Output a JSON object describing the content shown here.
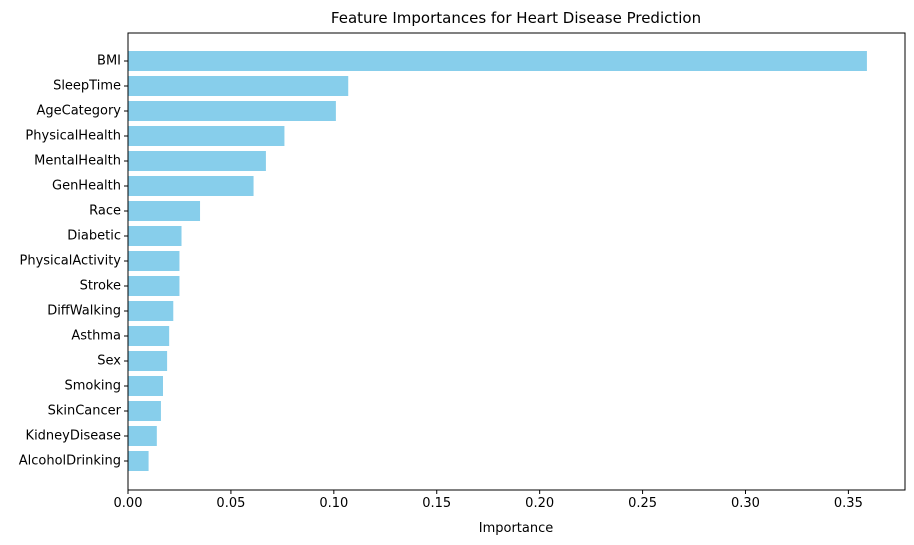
{
  "chart_data": {
    "type": "bar",
    "orientation": "horizontal",
    "title": "Feature Importances for Heart Disease Prediction",
    "xlabel": "Importance",
    "ylabel": "",
    "categories": [
      "BMI",
      "SleepTime",
      "AgeCategory",
      "PhysicalHealth",
      "MentalHealth",
      "GenHealth",
      "Race",
      "Diabetic",
      "PhysicalActivity",
      "Stroke",
      "DiffWalking",
      "Asthma",
      "Sex",
      "Smoking",
      "SkinCancer",
      "KidneyDisease",
      "AlcoholDrinking"
    ],
    "values": [
      0.359,
      0.107,
      0.101,
      0.076,
      0.067,
      0.061,
      0.035,
      0.026,
      0.025,
      0.025,
      0.022,
      0.02,
      0.019,
      0.017,
      0.016,
      0.014,
      0.01
    ],
    "xlim": [
      0,
      0.3775
    ],
    "xticks": [
      0.0,
      0.05,
      0.1,
      0.15,
      0.2,
      0.25,
      0.3,
      0.35
    ],
    "xtick_labels": [
      "0.00",
      "0.05",
      "0.10",
      "0.15",
      "0.20",
      "0.25",
      "0.30",
      "0.35"
    ],
    "grid": false,
    "bar_color": "#87ceeb"
  }
}
